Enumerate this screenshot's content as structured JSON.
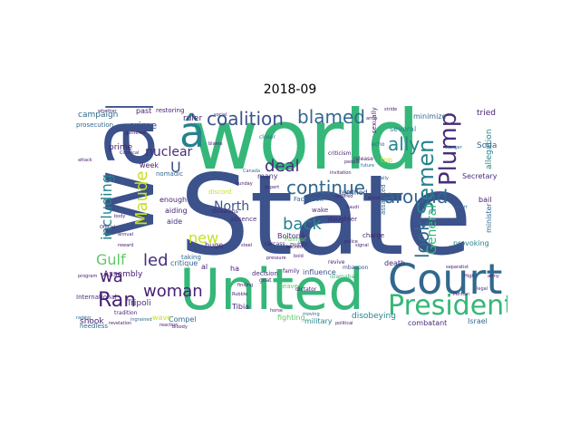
{
  "title": "2018-09",
  "palette": {
    "navy": "#3b528b",
    "indigo": "#472d7b",
    "purple": "#482173",
    "blue": "#31688e",
    "teal": "#26828e",
    "green": "#35b779",
    "light_green": "#5ec962",
    "lime": "#90d743",
    "yellow": "#c8e020",
    "dark": "#440154"
  },
  "words": [
    {
      "text": "State",
      "color": "#3b528b"
    },
    {
      "text": "world",
      "color": "#35b779"
    },
    {
      "text": "war",
      "color": "#3b528b"
    },
    {
      "text": "United",
      "color": "#35b779"
    },
    {
      "text": "Court",
      "color": "#31688e"
    },
    {
      "text": "President",
      "color": "#35b779"
    },
    {
      "text": "â",
      "color": "#26828e"
    },
    {
      "text": "coalition",
      "color": "#3b528b"
    },
    {
      "text": "blamed",
      "color": "#31688e"
    },
    {
      "text": "continue",
      "color": "#31688e"
    },
    {
      "text": "Plump",
      "color": "#472d7b"
    },
    {
      "text": "ally",
      "color": "#26828e"
    },
    {
      "text": "Semen",
      "color": "#26828e"
    },
    {
      "text": "around",
      "color": "#31688e"
    },
    {
      "text": "look",
      "color": "#31688e"
    },
    {
      "text": "deal",
      "color": "#472d7b"
    },
    {
      "text": "back",
      "color": "#26828e"
    },
    {
      "text": "new",
      "color": "#c8e020"
    },
    {
      "text": "led",
      "color": "#472d7b"
    },
    {
      "text": "Ran",
      "color": "#482173"
    },
    {
      "text": "woman",
      "color": "#482173"
    },
    {
      "text": "Gulf",
      "color": "#5ec962"
    },
    {
      "text": "wa",
      "color": "#482173"
    },
    {
      "text": "U",
      "color": "#3b528b"
    },
    {
      "text": "Maude",
      "color": "#c8e020"
    },
    {
      "text": "including",
      "color": "#26828e"
    },
    {
      "text": "nuclear",
      "color": "#472d7b"
    },
    {
      "text": "North",
      "color": "#3b528b"
    },
    {
      "text": "General",
      "color": "#35b779"
    },
    {
      "text": "crime",
      "color": "#3b528b"
    },
    {
      "text": "campaign",
      "color": "#31688e"
    },
    {
      "text": "Tripoli",
      "color": "#472d7b"
    },
    {
      "text": "Assembly",
      "color": "#482173"
    },
    {
      "text": "shook",
      "color": "#482173"
    },
    {
      "text": "prime",
      "color": "#482173"
    },
    {
      "text": "ruler",
      "color": "#482173"
    },
    {
      "text": "past",
      "color": "#482173"
    },
    {
      "text": "restoring",
      "color": "#482173"
    },
    {
      "text": "prosecution",
      "color": "#31688e"
    },
    {
      "text": "minimize",
      "color": "#31688e"
    },
    {
      "text": "tried",
      "color": "#482173"
    },
    {
      "text": "allegation",
      "color": "#26828e"
    },
    {
      "text": "Soda",
      "color": "#31688e"
    },
    {
      "text": "Secretary",
      "color": "#472d7b"
    },
    {
      "text": "minister",
      "color": "#31688e"
    },
    {
      "text": "bail",
      "color": "#482173"
    },
    {
      "text": "provoking",
      "color": "#26828e"
    },
    {
      "text": "Israel",
      "color": "#31688e"
    },
    {
      "text": "combatant",
      "color": "#472d7b"
    },
    {
      "text": "disobeying",
      "color": "#26828e"
    },
    {
      "text": "military",
      "color": "#26828e"
    },
    {
      "text": "fighting",
      "color": "#5ec962"
    },
    {
      "text": "Tibia",
      "color": "#482173"
    },
    {
      "text": "Compel",
      "color": "#31688e"
    },
    {
      "text": "heedless",
      "color": "#31688e"
    },
    {
      "text": "wave",
      "color": "#c8e020"
    },
    {
      "text": "International",
      "color": "#472d7b"
    },
    {
      "text": "critique",
      "color": "#31688e"
    },
    {
      "text": "huge",
      "color": "#482173"
    },
    {
      "text": "aide",
      "color": "#472d7b"
    },
    {
      "text": "aiding",
      "color": "#482173"
    },
    {
      "text": "taking",
      "color": "#31688e"
    },
    {
      "text": "enough",
      "color": "#482173"
    },
    {
      "text": "week",
      "color": "#482173"
    },
    {
      "text": "nomadic",
      "color": "#31688e"
    },
    {
      "text": "discord",
      "color": "#c8e020"
    },
    {
      "text": "many",
      "color": "#472d7b"
    },
    {
      "text": "absence",
      "color": "#472d7b"
    },
    {
      "text": "wake",
      "color": "#472d7b"
    },
    {
      "text": "terrified",
      "color": "#3b528b"
    },
    {
      "text": "Facebook",
      "color": "#31688e"
    },
    {
      "text": "John",
      "color": "#31688e"
    },
    {
      "text": "Palmar",
      "color": "#5ec962"
    },
    {
      "text": "public",
      "color": "#472d7b"
    },
    {
      "text": "Boltonâ",
      "color": "#472d7b"
    },
    {
      "text": "daughter",
      "color": "#482173"
    },
    {
      "text": "influence",
      "color": "#3b528b"
    },
    {
      "text": "death",
      "color": "#472d7b"
    },
    {
      "text": "several",
      "color": "#26828e"
    },
    {
      "text": "top",
      "color": "#c8e020"
    },
    {
      "text": "charge",
      "color": "#482173"
    },
    {
      "text": "assaulted",
      "color": "#31688e"
    },
    {
      "text": "sexually",
      "color": "#482173"
    },
    {
      "text": "criticism",
      "color": "#482173"
    },
    {
      "text": "release",
      "color": "#482173"
    },
    {
      "text": "echo",
      "color": "#31688e"
    },
    {
      "text": "ha",
      "color": "#482173"
    },
    {
      "text": "al",
      "color": "#482173"
    },
    {
      "text": "decision",
      "color": "#472d7b"
    },
    {
      "text": "family",
      "color": "#482173"
    },
    {
      "text": "Leave",
      "color": "#5ec962"
    },
    {
      "text": "goat",
      "color": "#482173"
    },
    {
      "text": "dictator",
      "color": "#482173"
    },
    {
      "text": "threatens",
      "color": "#482173"
    },
    {
      "text": "tradition",
      "color": "#472d7b"
    },
    {
      "text": "revive",
      "color": "#482173"
    },
    {
      "text": "closer",
      "color": "#31688e"
    },
    {
      "text": "mbaapon",
      "color": "#3b528b"
    },
    {
      "text": "islamabad",
      "color": "#35b779"
    },
    {
      "text": "carcass",
      "color": "#482173"
    },
    {
      "text": "future",
      "color": "#31688e"
    },
    {
      "text": "ordered",
      "color": "#482173"
    },
    {
      "text": "effort",
      "color": "#31688e"
    },
    {
      "text": "Persian",
      "color": "#472d7b"
    },
    {
      "text": "bloody",
      "color": "#482173"
    },
    {
      "text": "ingrained",
      "color": "#31688e"
    },
    {
      "text": "Rubble",
      "color": "#482173"
    },
    {
      "text": "horse",
      "color": "#482173"
    },
    {
      "text": "moving",
      "color": "#31688e"
    },
    {
      "text": "political",
      "color": "#482173"
    },
    {
      "text": "Canada",
      "color": "#31688e"
    },
    {
      "text": "reaction",
      "color": "#482173"
    },
    {
      "text": "gathered",
      "color": "#482173"
    },
    {
      "text": "program",
      "color": "#482173"
    },
    {
      "text": "separatist",
      "color": "#482173"
    },
    {
      "text": "hunger",
      "color": "#31688e"
    },
    {
      "text": "Convical",
      "color": "#472d7b"
    },
    {
      "text": "whether",
      "color": "#482173"
    },
    {
      "text": "stride",
      "color": "#482173"
    },
    {
      "text": "social",
      "color": "#482173"
    },
    {
      "text": "arms",
      "color": "#482173"
    },
    {
      "text": "rally",
      "color": "#31688e"
    },
    {
      "text": "blame",
      "color": "#482173"
    },
    {
      "text": "people",
      "color": "#482173"
    },
    {
      "text": "invitation",
      "color": "#482173"
    },
    {
      "text": "legal",
      "color": "#472d7b"
    },
    {
      "text": "High",
      "color": "#482173"
    },
    {
      "text": "army",
      "color": "#482173"
    },
    {
      "text": "body",
      "color": "#482173"
    },
    {
      "text": "Official",
      "color": "#482173"
    },
    {
      "text": "annual",
      "color": "#482173"
    },
    {
      "text": "reward",
      "color": "#482173"
    },
    {
      "text": "raging",
      "color": "#31688e"
    },
    {
      "text": "revelation",
      "color": "#482173"
    },
    {
      "text": "attack",
      "color": "#482173"
    },
    {
      "text": "finding",
      "color": "#482173"
    },
    {
      "text": "backed",
      "color": "#482173"
    },
    {
      "text": "police",
      "color": "#482173"
    },
    {
      "text": "signal",
      "color": "#482173"
    },
    {
      "text": "Sunday",
      "color": "#482173"
    },
    {
      "text": "expert",
      "color": "#482173"
    },
    {
      "text": "pressure",
      "color": "#482173"
    },
    {
      "text": "bold",
      "color": "#482173"
    },
    {
      "text": "steel",
      "color": "#482173"
    },
    {
      "text": "Saudi",
      "color": "#482173"
    },
    {
      "text": "wood",
      "color": "#482173"
    }
  ]
}
